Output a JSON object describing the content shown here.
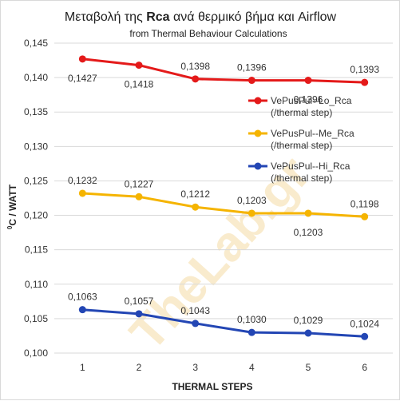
{
  "chart_data": {
    "type": "line",
    "title_prefix": "Μεταβολή της ",
    "title_bold": "Rca",
    "title_suffix": " ανά θερμικό βήμα και  Airflow",
    "subtitle": "from Thermal Behaviour Calculations",
    "xlabel": "THERMAL  STEPS",
    "ylabel_sup": "0",
    "ylabel_main": "C / WATT",
    "categories": [
      "1",
      "2",
      "3",
      "4",
      "5",
      "6"
    ],
    "ylim": [
      0.1,
      0.145
    ],
    "y_ticks": [
      "0,100",
      "0,105",
      "0,110",
      "0,115",
      "0,120",
      "0,125",
      "0,130",
      "0,135",
      "0,140",
      "0,145"
    ],
    "grid": "horizontal",
    "legend_position": "right",
    "series": [
      {
        "name": "VePusPul--Lo_Rca",
        "name_line2": "(/thermal step)",
        "color": "#e41a1a",
        "values": [
          0.1427,
          0.1418,
          0.1398,
          0.1396,
          0.1396,
          0.1393
        ],
        "labels": [
          "0,1427",
          "0,1418",
          "0,1398",
          "0,1396",
          "0,1396",
          "0,1393"
        ]
      },
      {
        "name": "VePusPul--Me_Rca",
        "name_line2": "(/thermal step)",
        "color": "#f5b400",
        "values": [
          0.1232,
          0.1227,
          0.1212,
          0.1203,
          0.1203,
          0.1198
        ],
        "labels": [
          "0,1232",
          "0,1227",
          "0,1212",
          "0,1203",
          "0,1203",
          "0,1198"
        ]
      },
      {
        "name": "VePusPul--Hi_Rca",
        "name_line2": "(/thermal step)",
        "color": "#2346b4",
        "values": [
          0.1063,
          0.1057,
          0.1043,
          0.103,
          0.1029,
          0.1024
        ],
        "labels": [
          "0,1063",
          "0,1057",
          "0,1043",
          "0,1030",
          "0,1029",
          "0,1024"
        ]
      }
    ],
    "watermark": "TheLab.gr"
  }
}
